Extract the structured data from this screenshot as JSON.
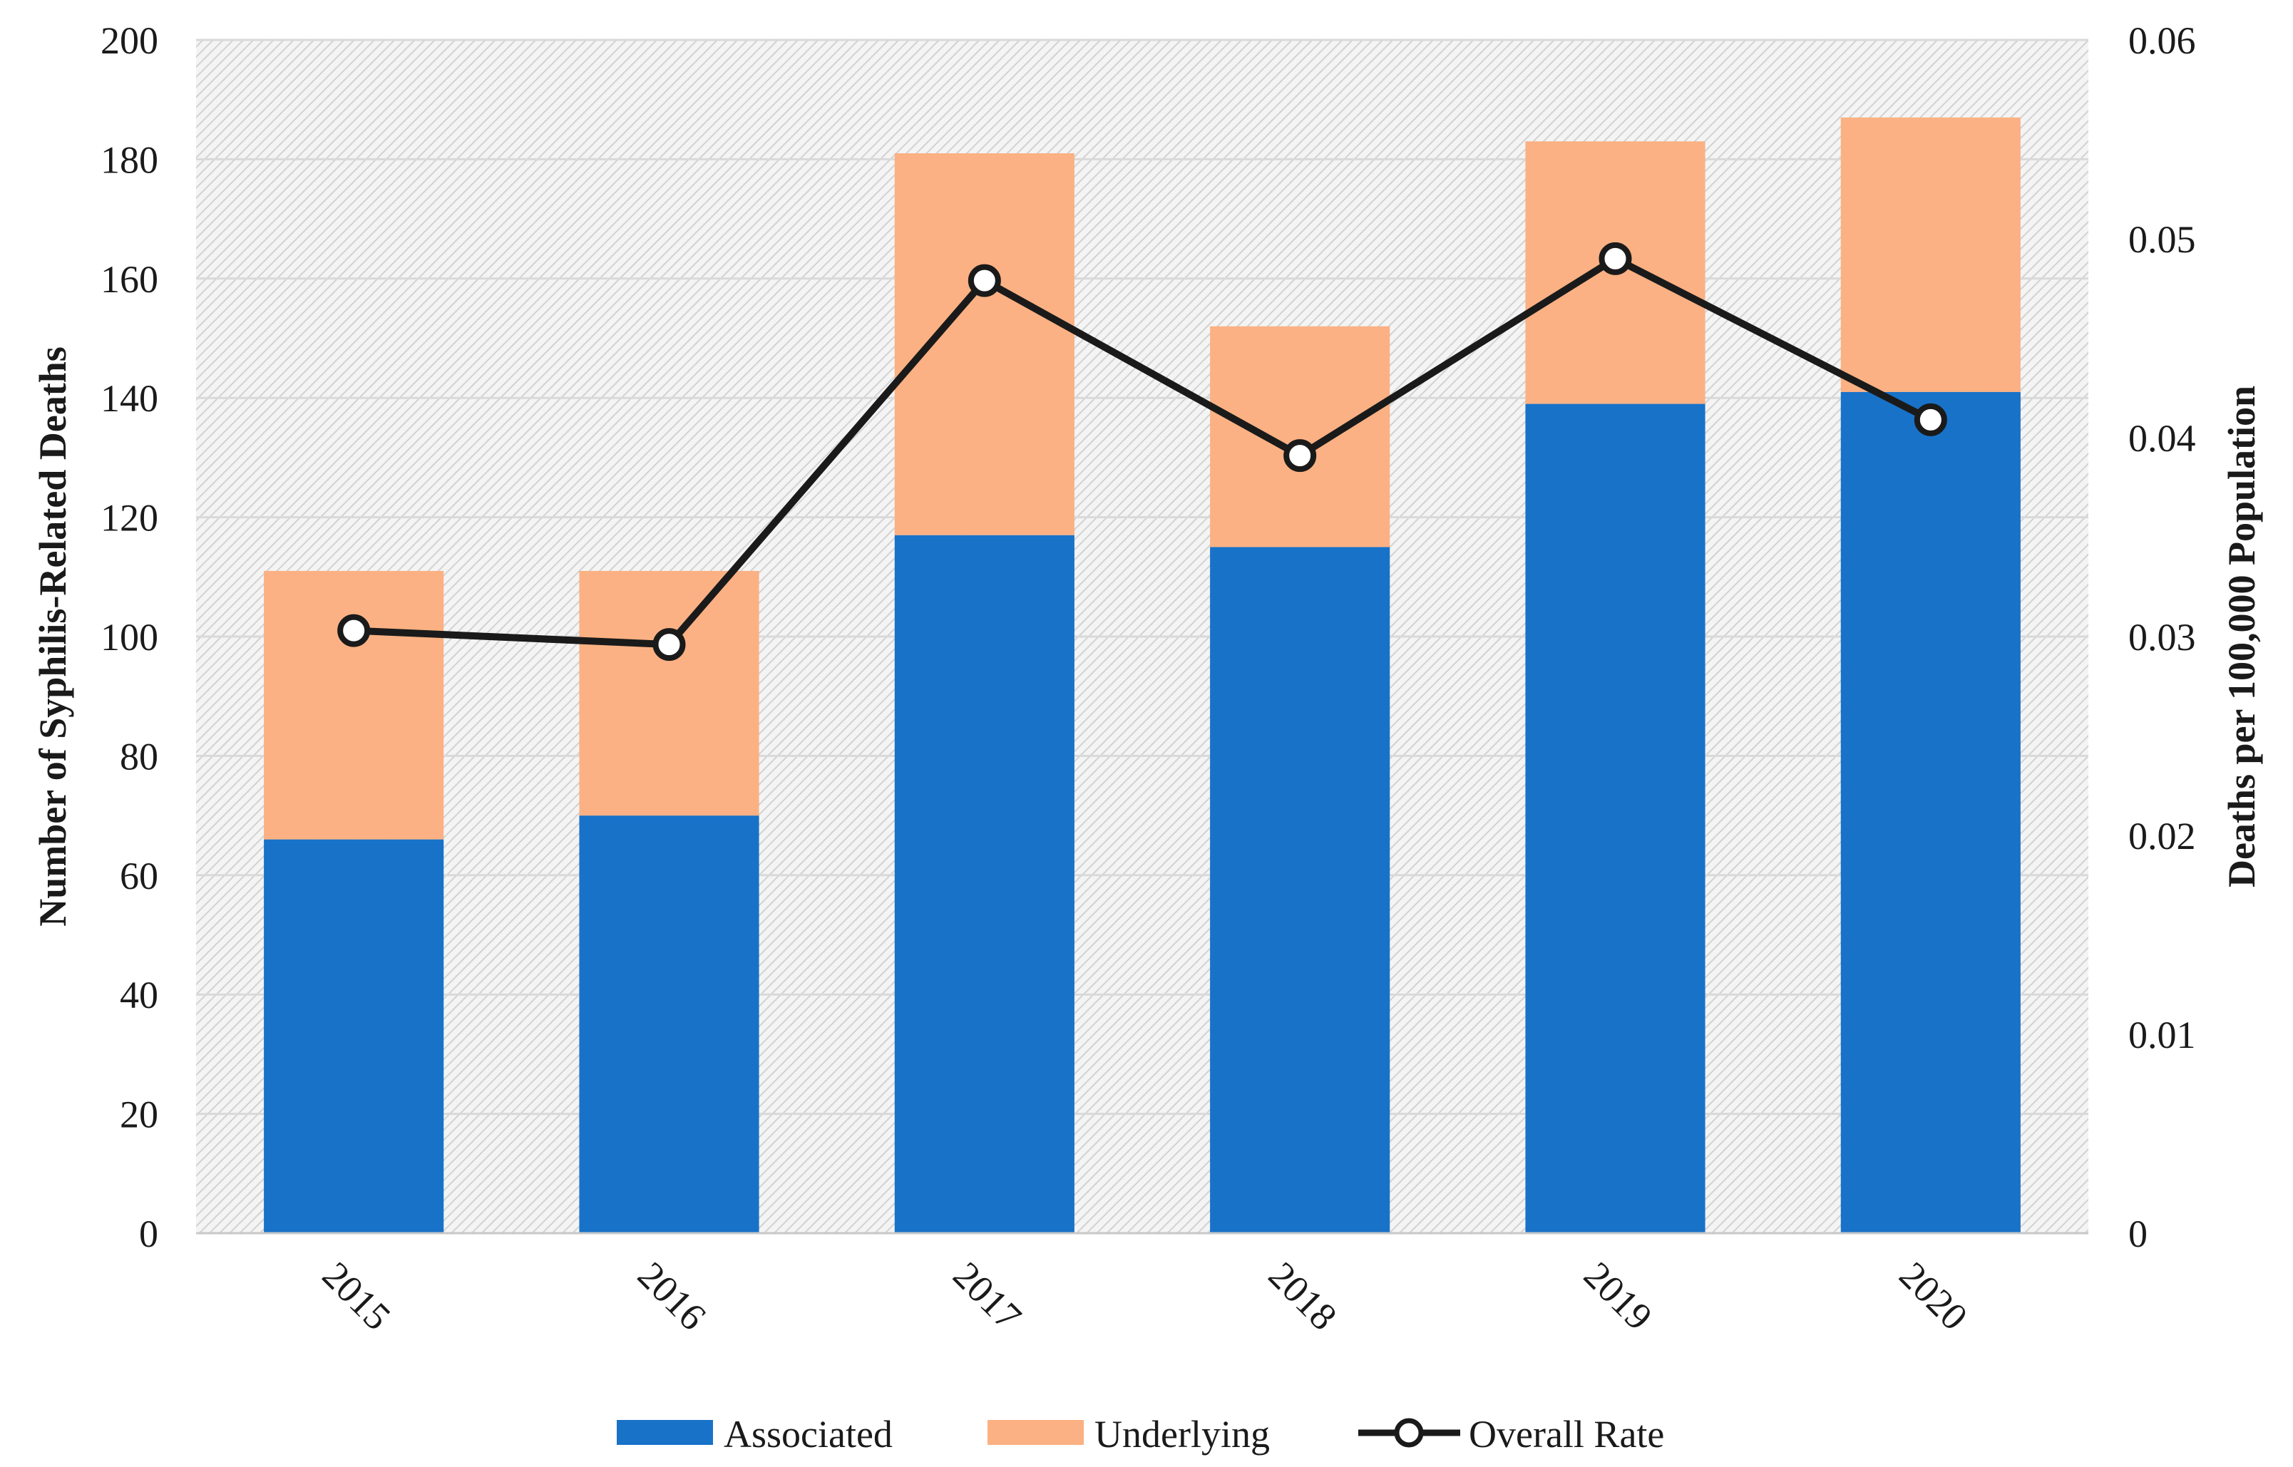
{
  "chart_data": {
    "type": "bar",
    "stacked": true,
    "categories": [
      "2015",
      "2016",
      "2017",
      "2018",
      "2019",
      "2020"
    ],
    "series": [
      {
        "name": "Associated",
        "type": "bar",
        "axis": "left",
        "color": "#1872C8",
        "values": [
          66,
          70,
          117,
          115,
          139,
          141
        ]
      },
      {
        "name": "Underlying",
        "type": "bar",
        "axis": "left",
        "color": "#FBB183",
        "values": [
          45,
          41,
          64,
          37,
          44,
          46
        ]
      },
      {
        "name": "Overall Rate",
        "type": "line",
        "axis": "right",
        "color": "#1a1a1a",
        "marker": "open-circle",
        "values": [
          0.0303,
          0.0296,
          0.0479,
          0.0391,
          0.049,
          0.0409
        ]
      }
    ],
    "ylabel": "Number of Syphilis-Related Deaths",
    "ylim": [
      0,
      200
    ],
    "yticks": [
      "0",
      "20",
      "40",
      "60",
      "80",
      "100",
      "120",
      "140",
      "160",
      "180",
      "200"
    ],
    "y2label": "Deaths per 100,000 Population",
    "y2lim": [
      0,
      0.06
    ],
    "y2ticks": [
      "0",
      "0.01",
      "0.02",
      "0.03",
      "0.04",
      "0.05",
      "0.06"
    ],
    "xlabel": "",
    "grid": true,
    "legend_position": "bottom"
  }
}
